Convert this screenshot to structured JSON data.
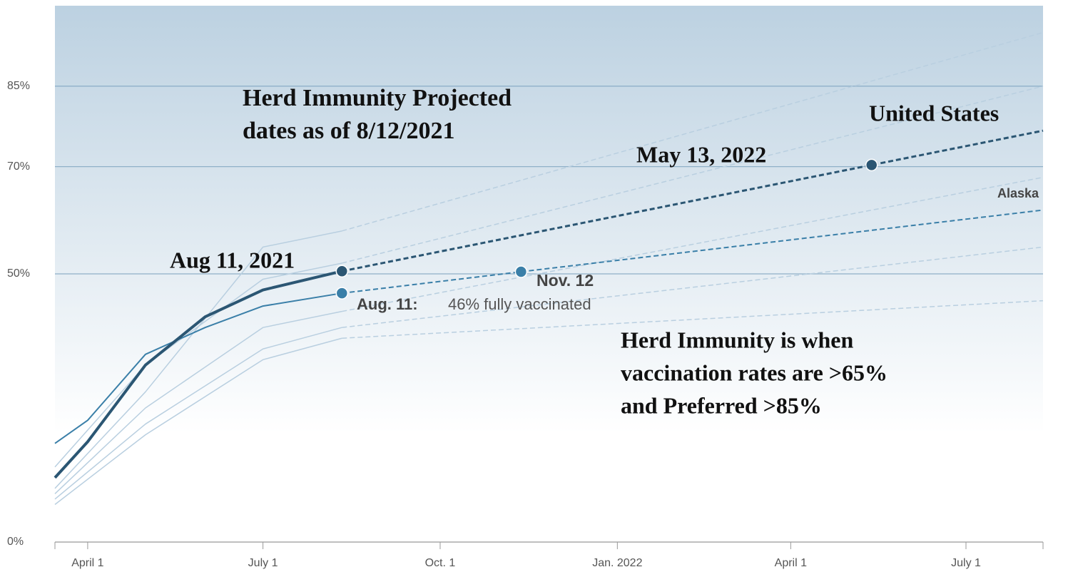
{
  "chart_data": {
    "type": "line",
    "xlim": [
      "2021-03-15",
      "2022-08-10"
    ],
    "xticks": [
      {
        "value": "2021-04-01",
        "label": "April 1"
      },
      {
        "value": "2021-07-01",
        "label": "July 1"
      },
      {
        "value": "2021-10-01",
        "label": "Oct. 1"
      },
      {
        "value": "2022-01-01",
        "label": "Jan. 2022"
      },
      {
        "value": "2022-04-01",
        "label": "April 1"
      },
      {
        "value": "2022-07-01",
        "label": "July 1"
      }
    ],
    "ylim": [
      0,
      100
    ],
    "yticks": [
      {
        "value": 0,
        "label": "0%"
      },
      {
        "value": 50,
        "label": "50%"
      },
      {
        "value": 70,
        "label": "70%"
      },
      {
        "value": 85,
        "label": "85%"
      }
    ],
    "grid": true,
    "series": [
      {
        "color": "#b9cfe0",
        "dashed": false,
        "x": [
          "2021-03-15",
          "2021-05-01",
          "2021-07-01",
          "2021-08-11"
        ],
        "values": [
          10,
          28,
          55,
          58
        ]
      },
      {
        "color": "#b9cfe0",
        "dashed": true,
        "x": [
          "2021-08-11",
          "2022-08-10"
        ],
        "values": [
          58,
          95
        ]
      },
      {
        "color": "#b9cfe0",
        "dashed": false,
        "x": [
          "2021-03-15",
          "2021-05-01",
          "2021-07-01",
          "2021-08-11"
        ],
        "values": [
          14,
          33,
          49,
          52
        ]
      },
      {
        "color": "#b9cfe0",
        "dashed": true,
        "x": [
          "2021-08-11",
          "2022-08-10"
        ],
        "values": [
          52,
          85
        ]
      },
      {
        "color": "#b9cfe0",
        "dashed": false,
        "x": [
          "2021-03-15",
          "2021-05-01",
          "2021-07-01",
          "2021-08-11"
        ],
        "values": [
          9,
          25,
          40,
          43
        ]
      },
      {
        "color": "#b9cfe0",
        "dashed": true,
        "x": [
          "2021-08-11",
          "2022-08-10"
        ],
        "values": [
          43,
          68
        ]
      },
      {
        "color": "#b9cfe0",
        "dashed": false,
        "x": [
          "2021-03-15",
          "2021-05-01",
          "2021-07-01",
          "2021-08-11"
        ],
        "values": [
          8,
          22,
          36,
          40
        ]
      },
      {
        "color": "#b9cfe0",
        "dashed": true,
        "x": [
          "2021-08-11",
          "2022-08-10"
        ],
        "values": [
          40,
          55
        ]
      },
      {
        "color": "#b9cfe0",
        "dashed": false,
        "x": [
          "2021-03-15",
          "2021-05-01",
          "2021-07-01",
          "2021-08-11"
        ],
        "values": [
          7,
          20,
          34,
          38
        ]
      },
      {
        "color": "#b9cfe0",
        "dashed": true,
        "x": [
          "2021-08-11",
          "2022-08-10"
        ],
        "values": [
          38,
          45
        ]
      },
      {
        "color": "#3a7fa8",
        "dashed": false,
        "width": 2,
        "x": [
          "2021-03-15",
          "2021-04-01",
          "2021-05-01",
          "2021-06-01",
          "2021-07-01",
          "2021-08-11"
        ],
        "values": [
          18.4,
          22.7,
          35,
          40,
          44,
          46.4
        ],
        "markers": [
          5
        ]
      },
      {
        "name": "Alaska",
        "color": "#3a7fa8",
        "dashed": true,
        "width": 2,
        "x": [
          "2021-08-11",
          "2021-11-12",
          "2022-08-10"
        ],
        "values": [
          46.4,
          50.4,
          61.9
        ],
        "markers": [
          1
        ]
      },
      {
        "color": "#2b5673",
        "dashed": false,
        "width": 4,
        "x": [
          "2021-03-15",
          "2021-04-01",
          "2021-05-01",
          "2021-06-01",
          "2021-07-01",
          "2021-08-11"
        ],
        "values": [
          12,
          18.7,
          33,
          42,
          47,
          50.5
        ],
        "markers": [
          5
        ]
      },
      {
        "name": "United States",
        "color": "#2b5673",
        "dashed": true,
        "width": 3,
        "x": [
          "2021-08-11",
          "2022-05-13",
          "2022-08-10"
        ],
        "values": [
          50.5,
          70.3,
          76.7
        ],
        "markers": [
          1
        ]
      }
    ],
    "annotations": [
      "Herd Immunity Projected",
      "dates as of 8/12/2021",
      "May 13, 2022",
      "Aug 11, 2021",
      "Nov. 12",
      "Aug. 11:",
      "46% fully vaccinated",
      "Herd Immunity is when",
      "vaccination rates are >65%",
      "and Preferred >85%"
    ]
  }
}
